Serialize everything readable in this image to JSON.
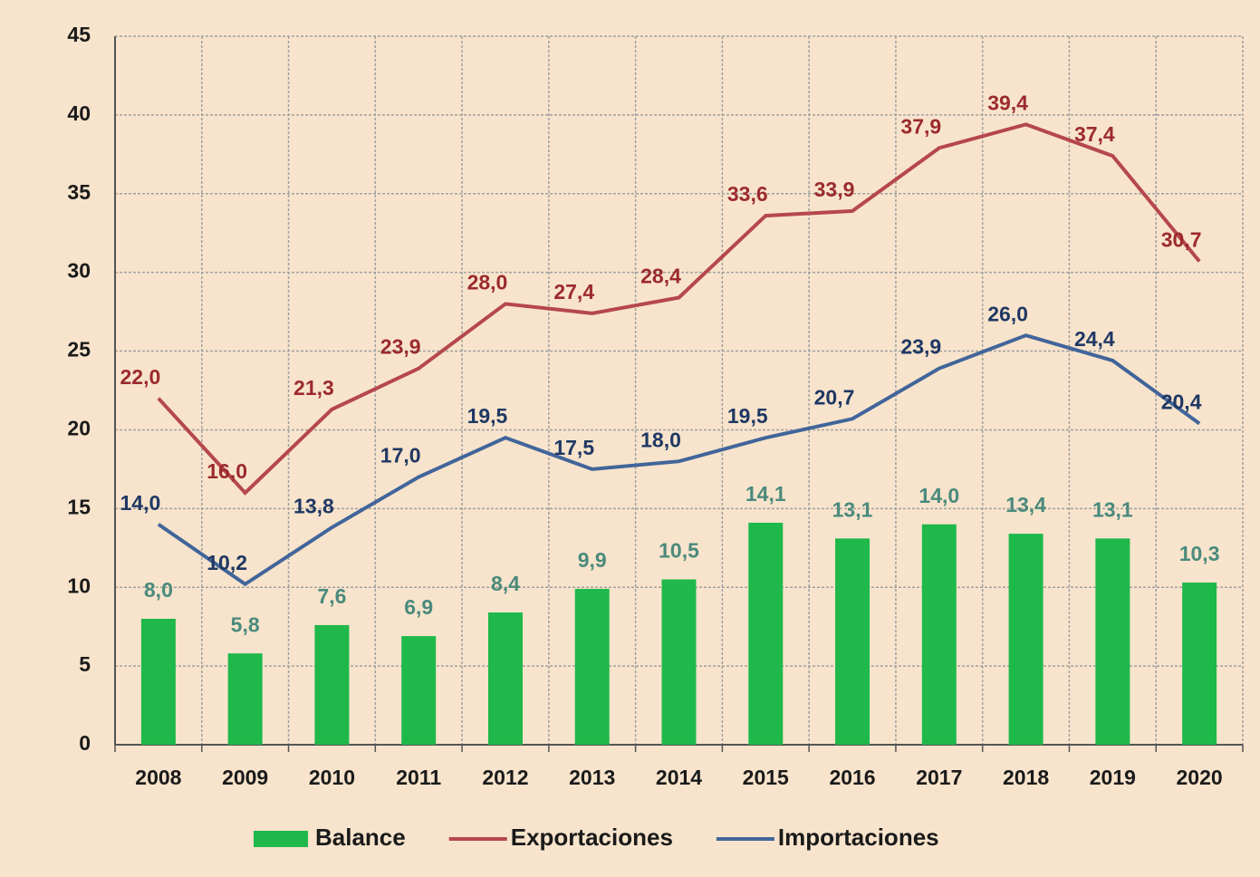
{
  "chart_data": {
    "type": "bar",
    "categories": [
      "2008",
      "2009",
      "2010",
      "2011",
      "2012",
      "2013",
      "2014",
      "2015",
      "2016",
      "2017",
      "2018",
      "2019",
      "2020"
    ],
    "series": [
      {
        "name": "Balance",
        "type": "bar",
        "color": "#1fb84a",
        "label_color": "#4a8a7c",
        "values": [
          8.0,
          5.8,
          7.6,
          6.9,
          8.4,
          9.9,
          10.5,
          14.1,
          13.1,
          14.0,
          13.4,
          13.1,
          10.3
        ],
        "value_labels": [
          "8,0",
          "5,8",
          "7,6",
          "6,9",
          "8,4",
          "9,9",
          "10,5",
          "14,1",
          "13,1",
          "14,0",
          "13,4",
          "13,1",
          "10,3"
        ]
      },
      {
        "name": "Exportaciones",
        "type": "line",
        "color": "#b5474d",
        "label_color": "#9b2a2e",
        "values": [
          22.0,
          16.0,
          21.3,
          23.9,
          28.0,
          27.4,
          28.4,
          33.6,
          33.9,
          37.9,
          39.4,
          37.4,
          30.7
        ],
        "value_labels": [
          "22,0",
          "16,0",
          "21,3",
          "23,9",
          "28,0",
          "27,4",
          "28,4",
          "33,6",
          "33,9",
          "37,9",
          "39,4",
          "37,4",
          "30,7"
        ]
      },
      {
        "name": "Importaciones",
        "type": "line",
        "color": "#41659a",
        "label_color": "#1f3864",
        "values": [
          14.0,
          10.2,
          13.8,
          17.0,
          19.5,
          17.5,
          18.0,
          19.5,
          20.7,
          23.9,
          26.0,
          24.4,
          20.4
        ],
        "value_labels": [
          "14,0",
          "10,2",
          "13,8",
          "17,0",
          "19,5",
          "17,5",
          "18,0",
          "19,5",
          "20,7",
          "23,9",
          "26,0",
          "24,4",
          "20,4"
        ]
      }
    ],
    "ylim": [
      0,
      45
    ],
    "yticks": [
      0,
      5,
      10,
      15,
      20,
      25,
      30,
      35,
      40,
      45
    ],
    "grid": true
  }
}
